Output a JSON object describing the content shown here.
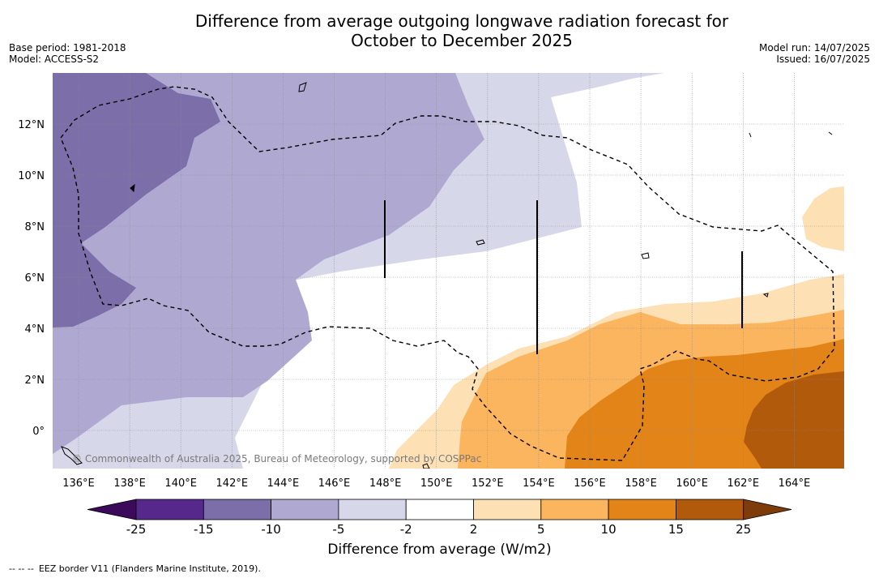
{
  "title_line1": "Difference from average outgoing longwave radiation forecast for",
  "title_line2": "October to December 2025",
  "base_period": "Base period: 1981-2018",
  "model": "Model: ACCESS-S2",
  "model_run": "Model run: 14/07/2025",
  "issued": "Issued: 16/07/2025",
  "copyright": "© Commonwealth of Australia 2025, Bureau of Meteorology, supported by COSPPac",
  "lon_labels": [
    "136°E",
    "138°E",
    "140°E",
    "142°E",
    "144°E",
    "146°E",
    "148°E",
    "150°E",
    "152°E",
    "154°E",
    "156°E",
    "158°E",
    "160°E",
    "162°E",
    "164°E"
  ],
  "lat_labels": [
    "12°N",
    "10°N",
    "8°N",
    "6°N",
    "4°N",
    "2°N",
    "0°"
  ],
  "colorbar": {
    "title": "Difference from average (W/m2)",
    "ticks": [
      "-25",
      "-15",
      "-10",
      "-5",
      "-2",
      "2",
      "5",
      "10",
      "15",
      "25"
    ],
    "colors": {
      "under": "#3c0a5a",
      "bin_-25_-15": "#56288b",
      "bin_-15_-10": "#7c6ea9",
      "bin_-10_-5": "#afa9d2",
      "bin_-5_-2": "#d7d7ea",
      "bin_-2_2": "#ffffff",
      "bin_2_5": "#fde0b4",
      "bin_5_10": "#fbb55e",
      "bin_10_15": "#e28418",
      "bin_15_25": "#b25a0b",
      "over": "#7f3c0b"
    }
  },
  "legend_line": {
    "symbol": "-- -- --",
    "text": "EEZ border V11 (Flanders Marine Institute, 2019)."
  }
}
